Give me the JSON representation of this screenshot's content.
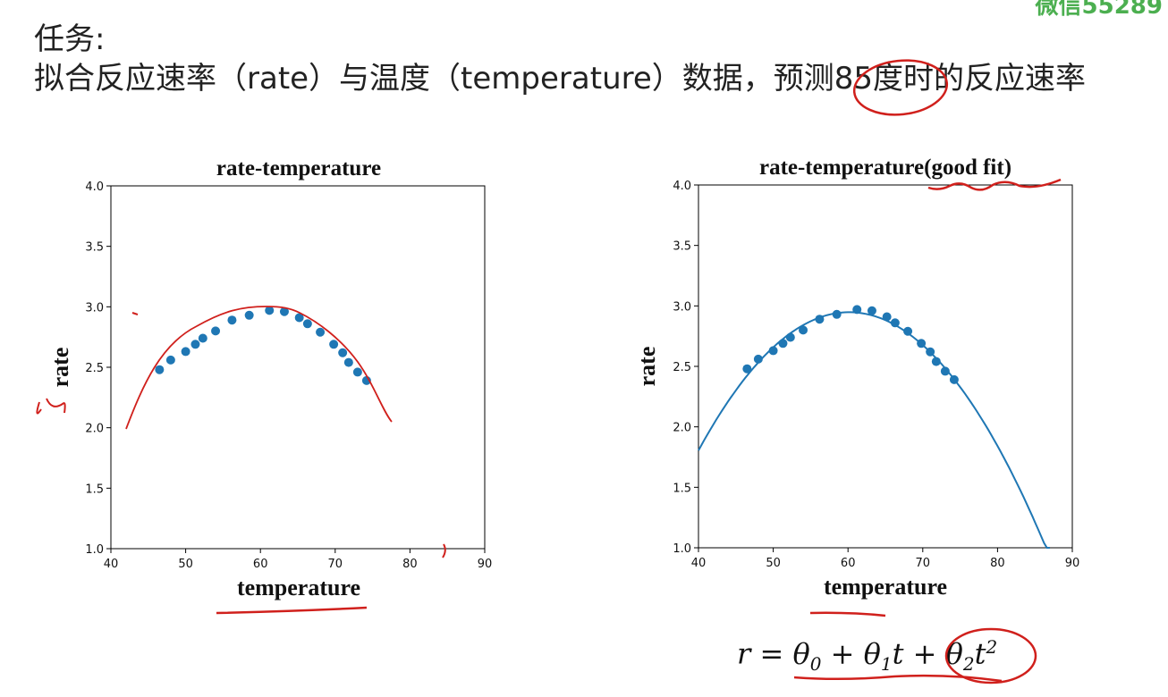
{
  "header": {
    "task_label": "任务:",
    "task_text": "拟合反应速率（rate）与温度（temperature）数据，预测85度时的反应速率",
    "watermark": "微信55289"
  },
  "colors": {
    "points": "#1f77b4",
    "fit_line": "#1f77b4",
    "annotation": "#d0201c"
  },
  "formula": {
    "lhs": "r",
    "eq": "=",
    "t0": "θ",
    "t0_sub": "0",
    "plus1": "+",
    "t1": "θ",
    "t1_sub": "1",
    "t1_var": "t",
    "plus2": "+",
    "t2": "θ",
    "t2_sub": "2",
    "t2_var": "t",
    "t2_sup": "2"
  },
  "chart_data": [
    {
      "type": "scatter",
      "title": "rate-temperature",
      "xlabel": "temperature",
      "ylabel": "rate",
      "xlim": [
        40,
        90
      ],
      "ylim": [
        1.0,
        4.0
      ],
      "xticks": [
        40,
        50,
        60,
        70,
        80,
        90
      ],
      "yticks": [
        1.0,
        1.5,
        2.0,
        2.5,
        3.0,
        3.5,
        4.0
      ],
      "x": [
        46.5,
        48.0,
        50.0,
        51.3,
        52.3,
        54.0,
        56.2,
        58.5,
        61.2,
        63.2,
        65.2,
        66.3,
        68.0,
        69.8,
        71.0,
        71.8,
        73.0,
        74.2
      ],
      "y": [
        2.48,
        2.56,
        2.63,
        2.69,
        2.74,
        2.8,
        2.89,
        2.93,
        2.97,
        2.96,
        2.91,
        2.86,
        2.79,
        2.69,
        2.62,
        2.54,
        2.46,
        2.39
      ]
    },
    {
      "type": "scatter",
      "title": "rate-temperature(good fit)",
      "xlabel": "temperature",
      "ylabel": "rate",
      "xlim": [
        40,
        90
      ],
      "ylim": [
        1.0,
        4.0
      ],
      "xticks": [
        40,
        50,
        60,
        70,
        80,
        90
      ],
      "yticks": [
        1.0,
        1.5,
        2.0,
        2.5,
        3.0,
        3.5,
        4.0
      ],
      "x": [
        46.5,
        48.0,
        50.0,
        51.3,
        52.3,
        54.0,
        56.2,
        58.5,
        61.2,
        63.2,
        65.2,
        66.3,
        68.0,
        69.8,
        71.0,
        71.8,
        73.0,
        74.2
      ],
      "y": [
        2.48,
        2.56,
        2.63,
        2.69,
        2.74,
        2.8,
        2.89,
        2.93,
        2.97,
        2.96,
        2.91,
        2.86,
        2.79,
        2.69,
        2.62,
        2.54,
        2.46,
        2.39
      ],
      "fit": {
        "model": "quadratic",
        "x_range": [
          40,
          87
        ]
      }
    }
  ]
}
